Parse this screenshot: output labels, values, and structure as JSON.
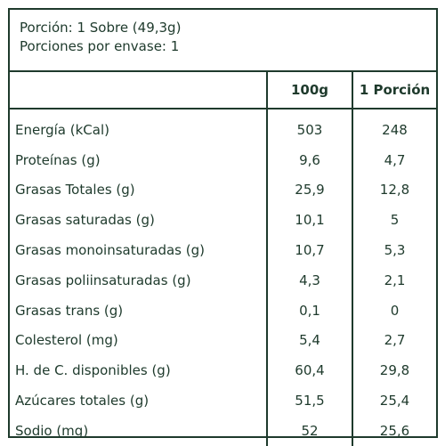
{
  "portion": {
    "line1": "Porción: 1 Sobre (49,3g)",
    "line2": "Porciones por envase: 1"
  },
  "table": {
    "headers": [
      "",
      "100g",
      "1 Porción"
    ],
    "rows": [
      {
        "label": "Energía (kCal)",
        "per100": "503",
        "perPortion": "248"
      },
      {
        "label": "Proteínas (g)",
        "per100": "9,6",
        "perPortion": "4,7"
      },
      {
        "label": "Grasas Totales (g)",
        "per100": "25,9",
        "perPortion": "12,8"
      },
      {
        "label": "Grasas saturadas (g)",
        "per100": "10,1",
        "perPortion": "5"
      },
      {
        "label": "Grasas monoinsaturadas (g)",
        "per100": "10,7",
        "perPortion": "5,3"
      },
      {
        "label": "Grasas poliinsaturadas (g)",
        "per100": "4,3",
        "perPortion": "2,1"
      },
      {
        "label": "Grasas trans (g)",
        "per100": "0,1",
        "perPortion": "0"
      },
      {
        "label": "Colesterol (mg)",
        "per100": "5,4",
        "perPortion": "2,7"
      },
      {
        "label": "H. de C. disponibles (g)",
        "per100": "60,4",
        "perPortion": "29,8"
      },
      {
        "label": "Azúcares totales (g)",
        "per100": "51,5",
        "perPortion": "25,4"
      },
      {
        "label": "Sodio (mg)",
        "per100": "52",
        "perPortion": "25,6"
      }
    ]
  }
}
